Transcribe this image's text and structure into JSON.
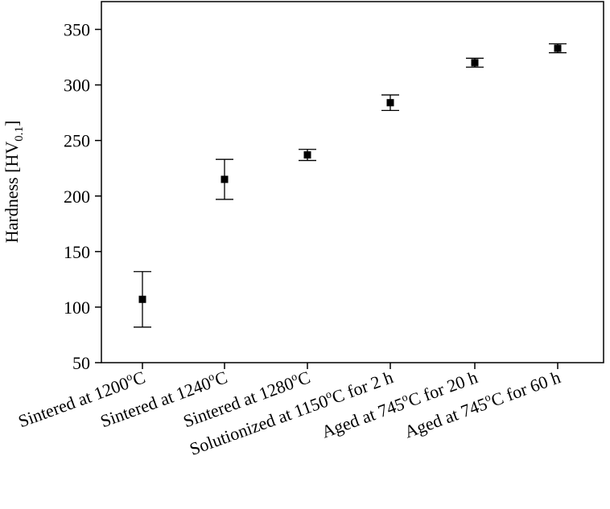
{
  "chart_data": {
    "type": "scatter",
    "title": "",
    "xlabel": "",
    "ylabel": {
      "main": "Hardness [HV",
      "subscript": "0.1",
      "close": "]"
    },
    "ylim": [
      50,
      375
    ],
    "yticks": [
      50,
      100,
      150,
      200,
      250,
      300,
      350
    ],
    "grid": false,
    "legend": "none",
    "marker": "square",
    "error_bars": true,
    "categories": [
      {
        "pre": "Sintered at 1200",
        "deg": "o",
        "post": "C"
      },
      {
        "pre": "Sintered at 1240",
        "deg": "o",
        "post": "C"
      },
      {
        "pre": "Sintered at 1280",
        "deg": "o",
        "post": "C"
      },
      {
        "pre": "Solutionized at 1150",
        "deg": "o",
        "post": "C for 2 h"
      },
      {
        "pre": "Aged at 745",
        "deg": "o",
        "post": "C for 20 h"
      },
      {
        "pre": "Aged at 745",
        "deg": "o",
        "post": "C for 60 h"
      }
    ],
    "series": [
      {
        "values": [
          107,
          215,
          237,
          284,
          320,
          333
        ],
        "err_low": [
          82,
          197,
          232,
          277,
          316,
          329
        ],
        "err_high": [
          132,
          233,
          242,
          291,
          324,
          337
        ]
      }
    ],
    "colors": {
      "marker": "#000000",
      "axis": "#000000"
    }
  }
}
